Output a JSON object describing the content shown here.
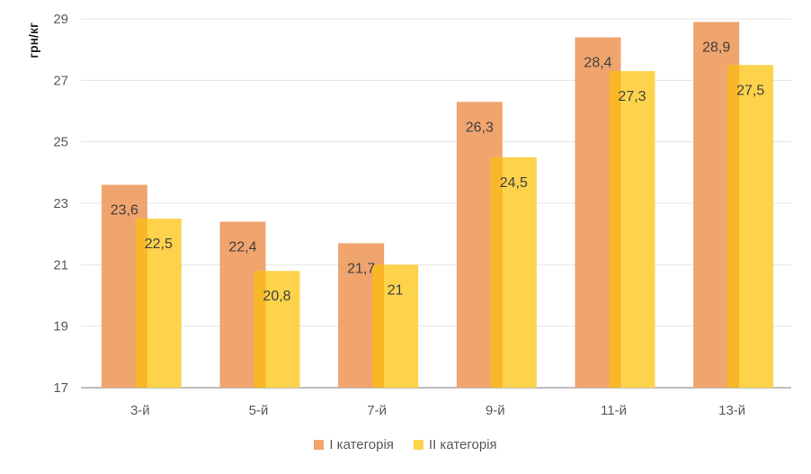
{
  "chart_data": {
    "type": "bar",
    "title": "",
    "xlabel": "",
    "ylabel": "грн/кг",
    "ylim": [
      17,
      29
    ],
    "yticks": [
      17,
      19,
      21,
      23,
      25,
      27,
      29
    ],
    "grid": true,
    "legend_position": "bottom",
    "categories": [
      "3-й",
      "5-й",
      "7-й",
      "9-й",
      "11-й",
      "13-й"
    ],
    "series": [
      {
        "name": "І категорія",
        "color": "#F0A46E",
        "values": [
          23.6,
          22.4,
          21.7,
          26.3,
          28.4,
          28.9
        ],
        "labels": [
          "23,6",
          "22,4",
          "21,7",
          "26,3",
          "28,4",
          "28,9"
        ]
      },
      {
        "name": "ІІ категорія",
        "color": "#FDD34B",
        "values": [
          22.5,
          20.8,
          21,
          24.5,
          27.3,
          27.5
        ],
        "labels": [
          "22,5",
          "20,8",
          "21",
          "24,5",
          "27,3",
          "27,5"
        ]
      }
    ],
    "overlap_color": "#F9B626"
  }
}
